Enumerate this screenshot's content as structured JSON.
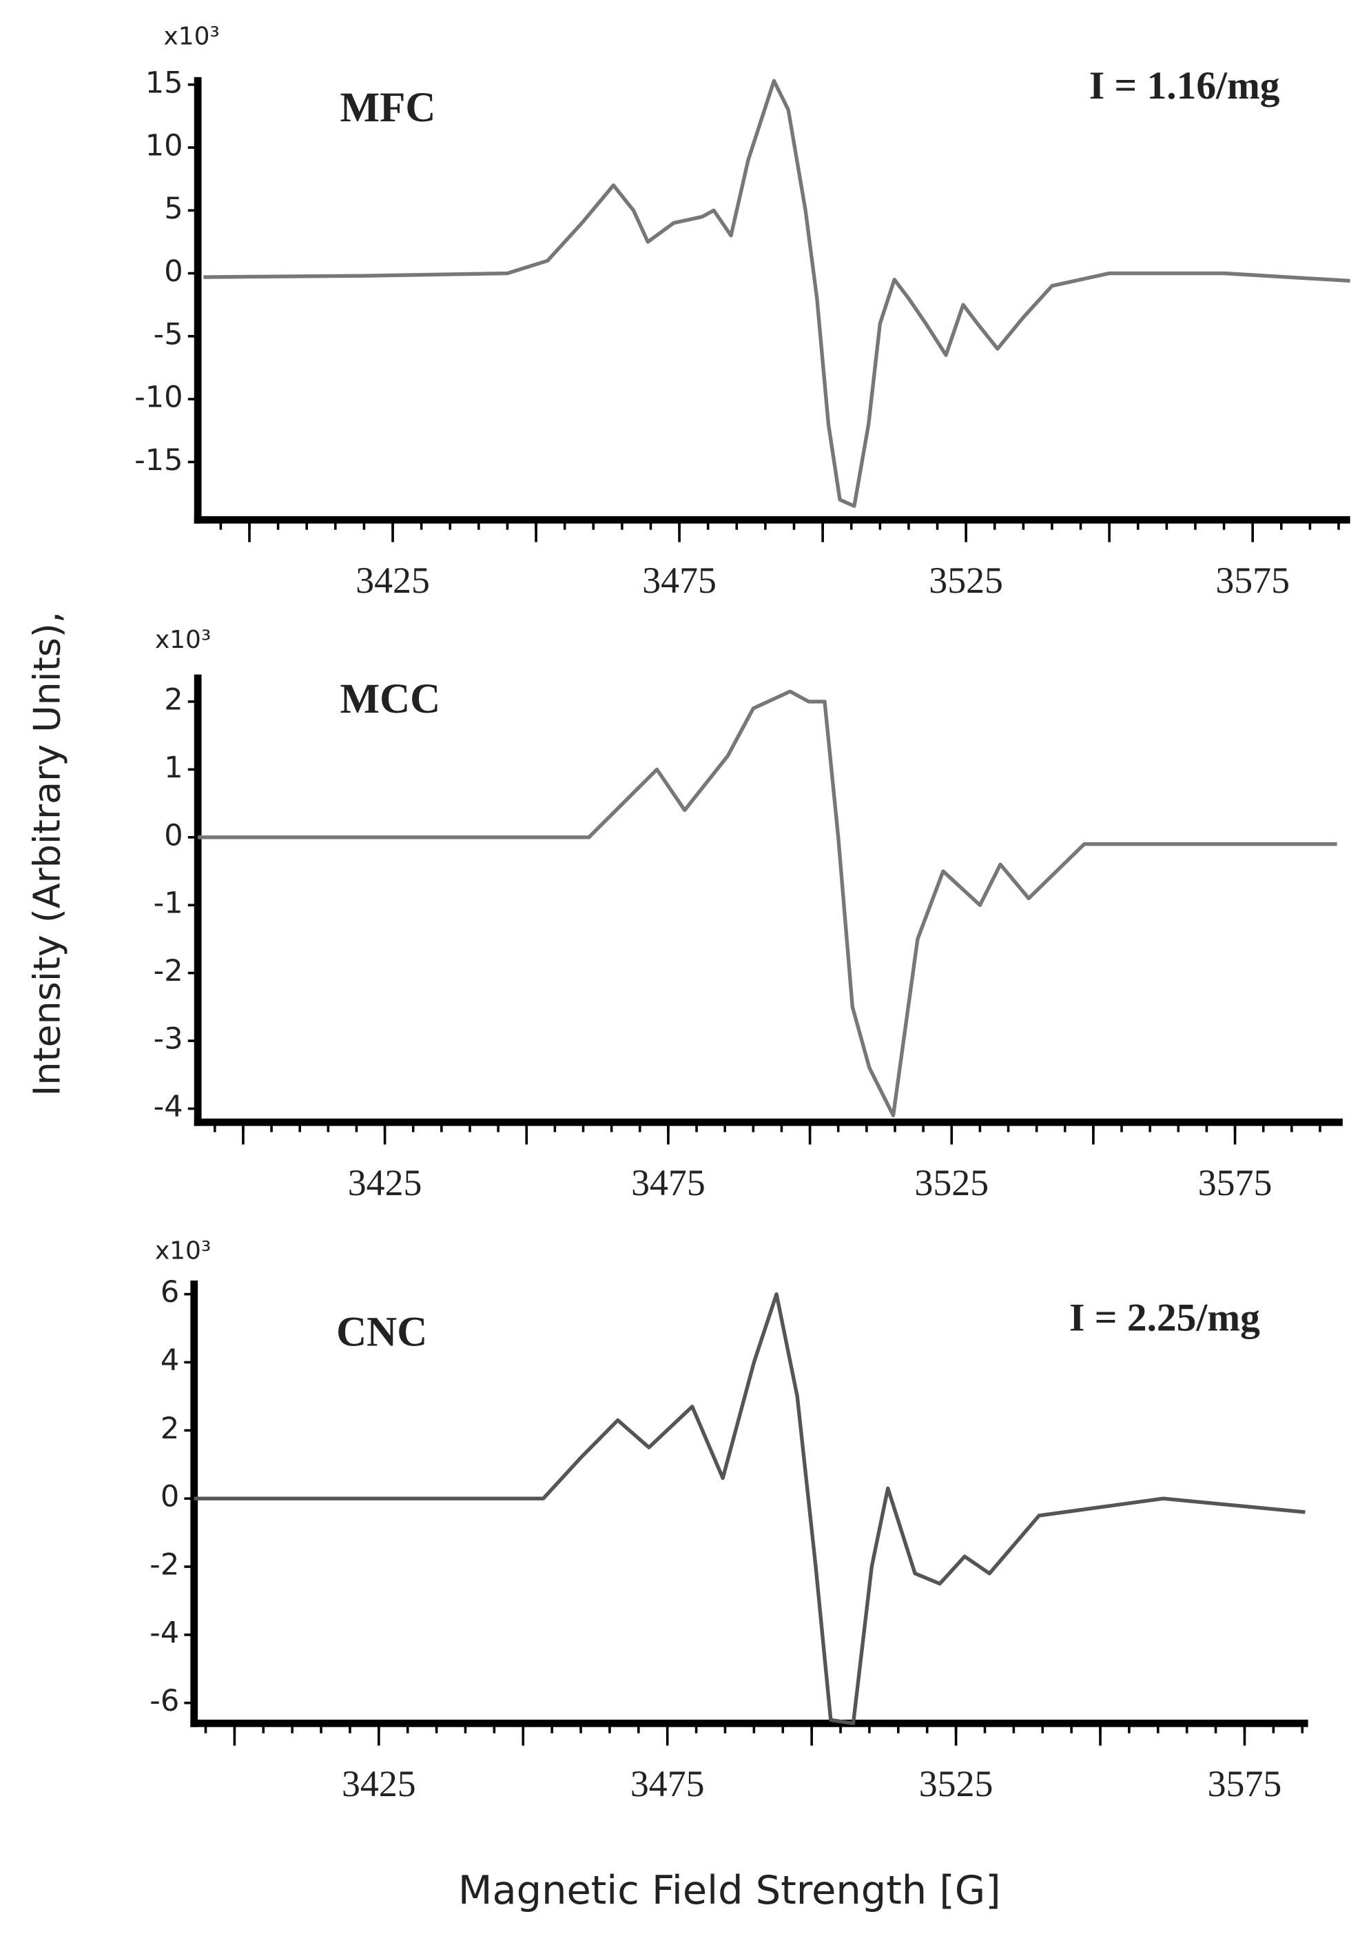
{
  "ylabel": "Intensity (Arbitrary Units),",
  "xlabel": "Magnetic Field Strength [G]",
  "chart_data": [
    {
      "type": "line",
      "title": "MFC",
      "annotation": "I = 1.16/mg",
      "y_multiplier": "x10³",
      "color": "#777777",
      "xlim": [
        3391,
        3592
      ],
      "xticks": [
        3425,
        3475,
        3525,
        3575
      ],
      "minor_xticks": [
        3400,
        3450,
        3500,
        3550
      ],
      "ylim": [
        -19.6,
        15.6
      ],
      "yticks": [
        15,
        10,
        5,
        0,
        -5,
        -10,
        -15
      ],
      "x": [
        3392,
        3420,
        3445,
        3452,
        3458,
        3463.5,
        3467,
        3469.5,
        3474,
        3479,
        3481,
        3484,
        3487,
        3491.5,
        3494,
        3497,
        3499,
        3501,
        3503,
        3505.5,
        3508,
        3510,
        3512.5,
        3515,
        3518,
        3521.5,
        3524.5,
        3527,
        3530.5,
        3535,
        3540,
        3550,
        3570,
        3592
      ],
      "values": [
        -0.3,
        -0.2,
        0,
        1,
        4,
        7,
        5,
        2.5,
        4,
        4.5,
        5,
        3,
        9,
        15.3,
        13,
        5,
        -2,
        -12,
        -18,
        -18.5,
        -12,
        -4,
        -0.5,
        -2,
        -4,
        -6.5,
        -2.5,
        -4,
        -6,
        -3.5,
        -1,
        0,
        0,
        -0.6
      ]
    },
    {
      "type": "line",
      "title": "MCC",
      "y_multiplier": "x10³",
      "color": "#777777",
      "xlim": [
        3392,
        3594
      ],
      "xticks": [
        3425,
        3475,
        3525,
        3575
      ],
      "minor_xticks": [
        3400,
        3450,
        3500,
        3550
      ],
      "ylim": [
        -4.2,
        2.4
      ],
      "yticks": [
        2,
        1,
        0,
        -1,
        -2,
        -3,
        -4
      ],
      "x": [
        3392,
        3440,
        3461,
        3467,
        3473,
        3477.9,
        3485.5,
        3490,
        3496.5,
        3499.8,
        3502.6,
        3505,
        3507.5,
        3510.5,
        3514.7,
        3519,
        3523.5,
        3530,
        3533.6,
        3538.6,
        3548.4,
        3570,
        3593
      ],
      "values": [
        0,
        0,
        0,
        0.5,
        1.0,
        0.4,
        1.2,
        1.9,
        2.15,
        2.0,
        2.0,
        0,
        -2.5,
        -3.4,
        -4.1,
        -1.5,
        -0.5,
        -1.0,
        -0.4,
        -0.9,
        -0.1,
        -0.1,
        -0.1
      ]
    },
    {
      "type": "line",
      "title": "CNC",
      "annotation": "I = 2.25/mg",
      "y_multiplier": "x10³",
      "color": "#555555",
      "xlim": [
        3393,
        3586
      ],
      "xticks": [
        3425,
        3475,
        3525,
        3575
      ],
      "minor_xticks": [
        3400,
        3450,
        3500,
        3550
      ],
      "ylim": [
        -6.6,
        6.4
      ],
      "yticks": [
        6,
        4,
        2,
        0,
        -2,
        -4,
        -6
      ],
      "x": [
        3393,
        3420,
        3445,
        3453.5,
        3460,
        3466.4,
        3471.8,
        3479.3,
        3484.6,
        3490,
        3493.9,
        3497.5,
        3500.7,
        3503.3,
        3507.2,
        3510.4,
        3513.2,
        3517.9,
        3522.2,
        3526.5,
        3530.8,
        3539.4,
        3560.9,
        3585.5
      ],
      "values": [
        0,
        0,
        0,
        0,
        1.2,
        2.3,
        1.5,
        2.7,
        0.6,
        4.0,
        6.0,
        3,
        -2,
        -6.5,
        -6.6,
        -2,
        0.3,
        -2.2,
        -2.5,
        -1.7,
        -2.2,
        -0.5,
        0,
        -0.4
      ]
    }
  ]
}
